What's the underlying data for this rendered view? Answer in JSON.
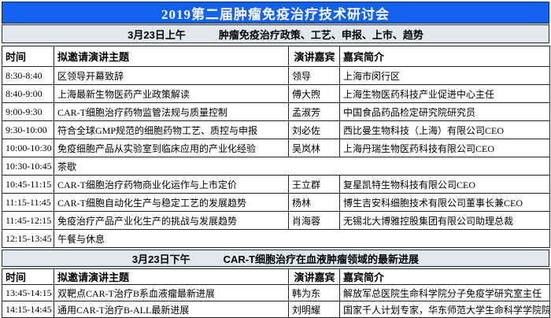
{
  "title": "2019第二届肿瘤免疫治疗技术研讨会",
  "colors": {
    "title_bg": "#1261f0",
    "title_text": "#ffffff",
    "section_bg": "#e2e7ec",
    "border": "#222222"
  },
  "sessions": [
    {
      "date": "3月23日上午",
      "topic": "肿瘤免疫治疗政策、工艺、申报、上市、趋势",
      "columns": [
        "时间",
        "拟邀请演讲主题",
        "演讲嘉宾",
        "嘉宾简介"
      ],
      "rows": [
        {
          "time": "8:30-8:40",
          "subject": "区领导开幕致辞",
          "speaker": "领导",
          "bio": "上海市闵行区"
        },
        {
          "time": "8:40-9:00",
          "subject": "上海最新生物医药产业政策解读",
          "speaker": "傅大煦",
          "bio": "上海生物医药科技产业促进中心主任"
        },
        {
          "time": "9:00-9:30",
          "subject": "CAR-T细胞治疗药物监管法规与质量控制",
          "speaker": "孟淑芳",
          "bio": "中国食品药品检定研究院研究员"
        },
        {
          "time": "9:30-10:00",
          "subject": "符合全球GMP规范的细胞药物工艺、质控与申报",
          "speaker": "刘必佐",
          "bio": "西比曼生物科技（上海）有限公司CEO"
        },
        {
          "time": "10:00-10:30",
          "subject": "免疫细胞产品从实验室到临床应用的产业化经验",
          "speaker": "吴岚林",
          "bio": "上海丹瑞生物医药科技有限公司CEO"
        },
        {
          "time": "10:30-10:45",
          "subject": "茶歇",
          "merged": true
        },
        {
          "time": "10:45-11:15",
          "subject": "CAR-T细胞治疗药物商业化运作与上市定价",
          "speaker": "王立群",
          "bio": "复星凯特生物科技有限公司CEO"
        },
        {
          "time": "11:15-11:45",
          "subject": "CAR-T细胞自动化生产与稳定工艺的发展趋势",
          "speaker": "杨林",
          "bio": "博生吉安科细胞技术有限公司董事长兼CEO"
        },
        {
          "time": "11:45-12:15",
          "subject": "免疫治疗产品产业化生产的挑战与发展趋势",
          "speaker": "肖海蓉",
          "bio": "无锡北大博雅控股集团有限公司助理总裁"
        },
        {
          "time": "12:15-13:45",
          "subject": "午餐与休息",
          "merged": true
        }
      ]
    },
    {
      "date": "3月23日下午",
      "topic": "CAR-T细胞治疗在血液肿瘤领域的最新进展",
      "columns": [
        "时间",
        "拟邀请演讲主题",
        "演讲嘉宾",
        "嘉宾简介"
      ],
      "rows": [
        {
          "time": "13:45-14:15",
          "subject": "双靶点CAR-T治疗B系血液瘤最新进展",
          "speaker": "韩为东",
          "bio": "解放军总医院生命科学院分子免疫学研究室主任"
        },
        {
          "time": "14:15-14:45",
          "subject": "通用CAR-T治疗B-ALL最新进展",
          "speaker": "刘明耀",
          "bio": "国家千人计划专家，华东师范大学生命科学学院院长"
        }
      ]
    }
  ]
}
